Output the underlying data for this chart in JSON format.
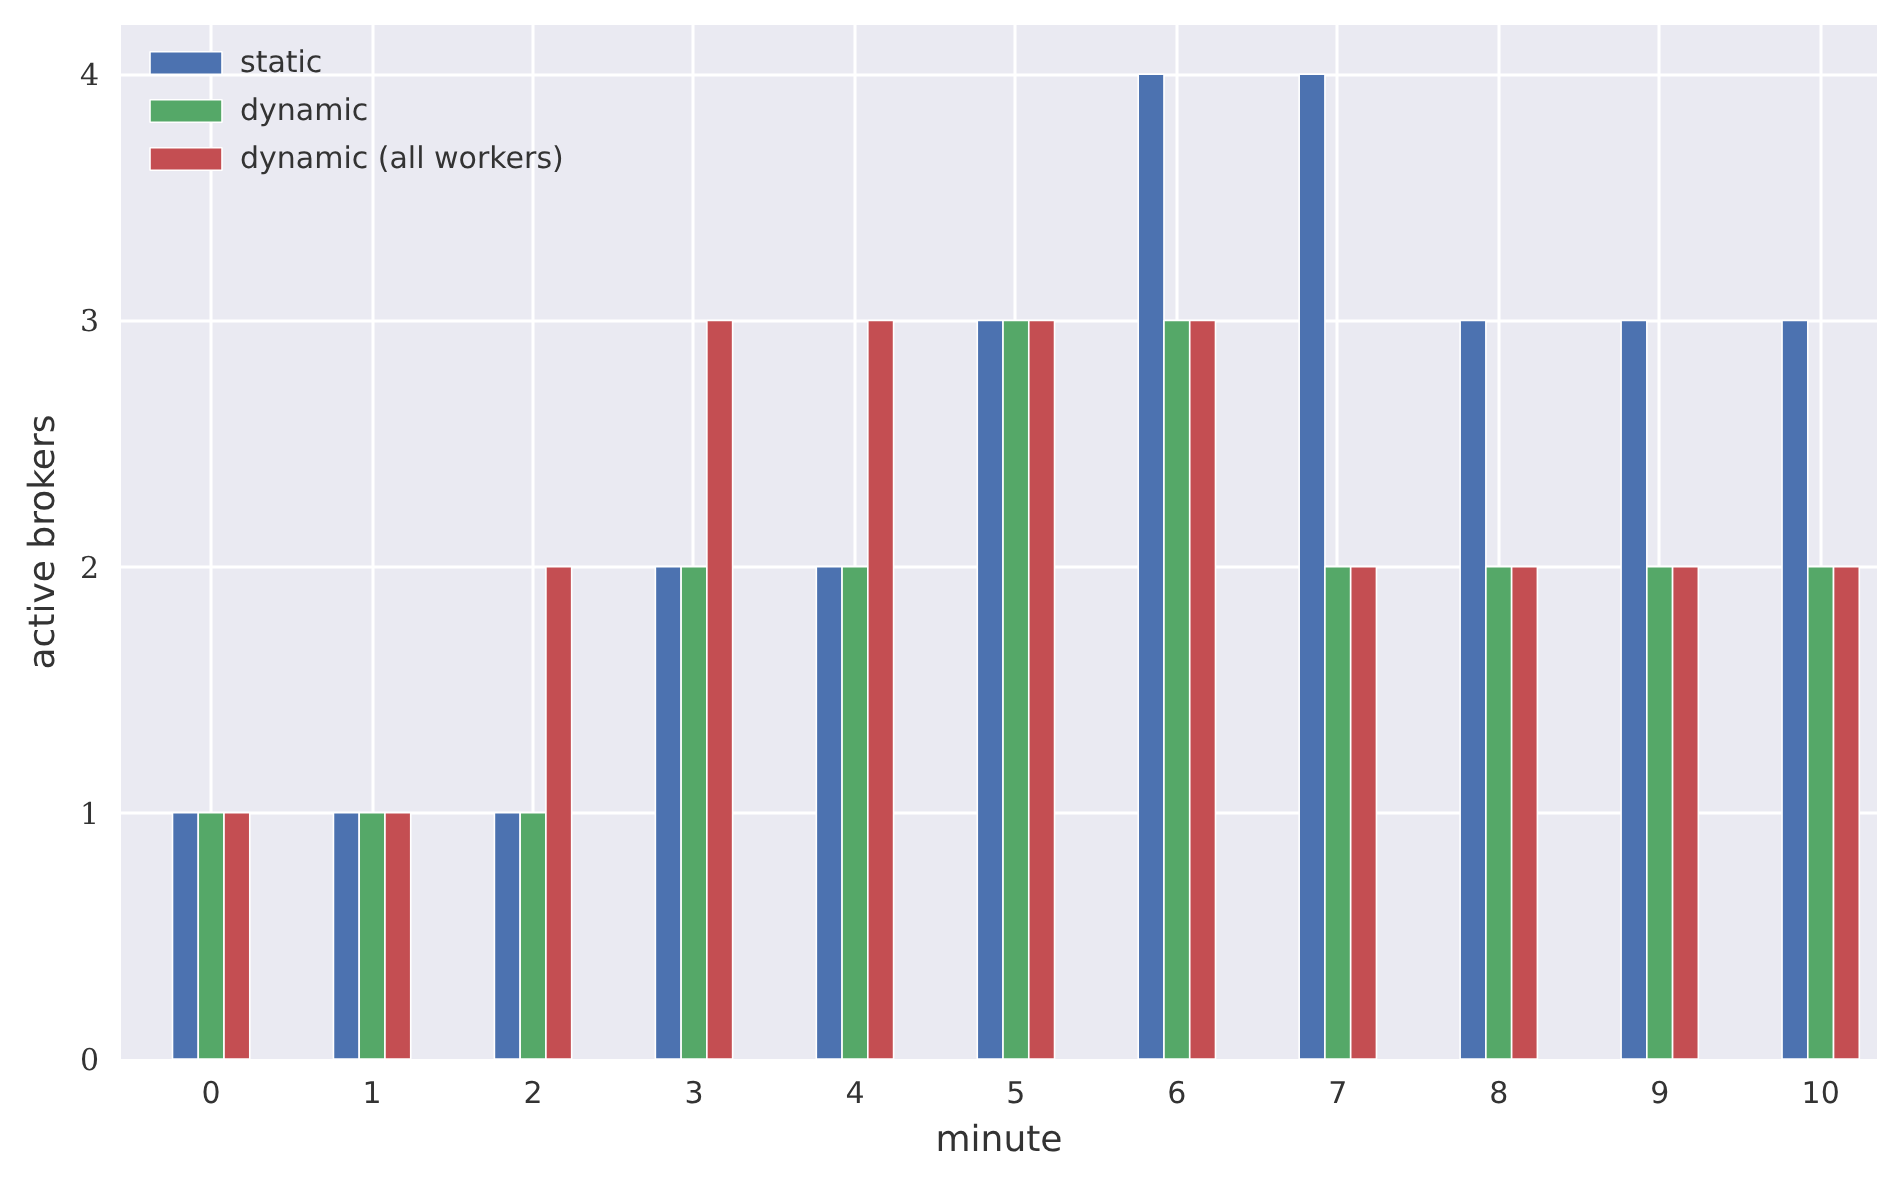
{
  "chart_data": {
    "type": "bar",
    "xlabel": "minute",
    "ylabel": "active brokers",
    "categories": [
      "0",
      "1",
      "2",
      "3",
      "4",
      "5",
      "6",
      "7",
      "8",
      "9",
      "10"
    ],
    "series": [
      {
        "name": "static",
        "color": "#4c72b0",
        "values": [
          1,
          1,
          1,
          2,
          2,
          3,
          4,
          4,
          3,
          3,
          3
        ]
      },
      {
        "name": "dynamic",
        "color": "#55a868",
        "values": [
          1,
          1,
          1,
          2,
          2,
          3,
          3,
          2,
          2,
          2,
          2
        ]
      },
      {
        "name": "dynamic (all workers)",
        "color": "#c44e52",
        "values": [
          1,
          1,
          2,
          3,
          3,
          3,
          3,
          2,
          2,
          2,
          2
        ]
      }
    ],
    "ylim": [
      0,
      4.2
    ],
    "yticks": [
      0,
      1,
      2,
      3,
      4
    ],
    "grid": true,
    "legend": "top left"
  }
}
